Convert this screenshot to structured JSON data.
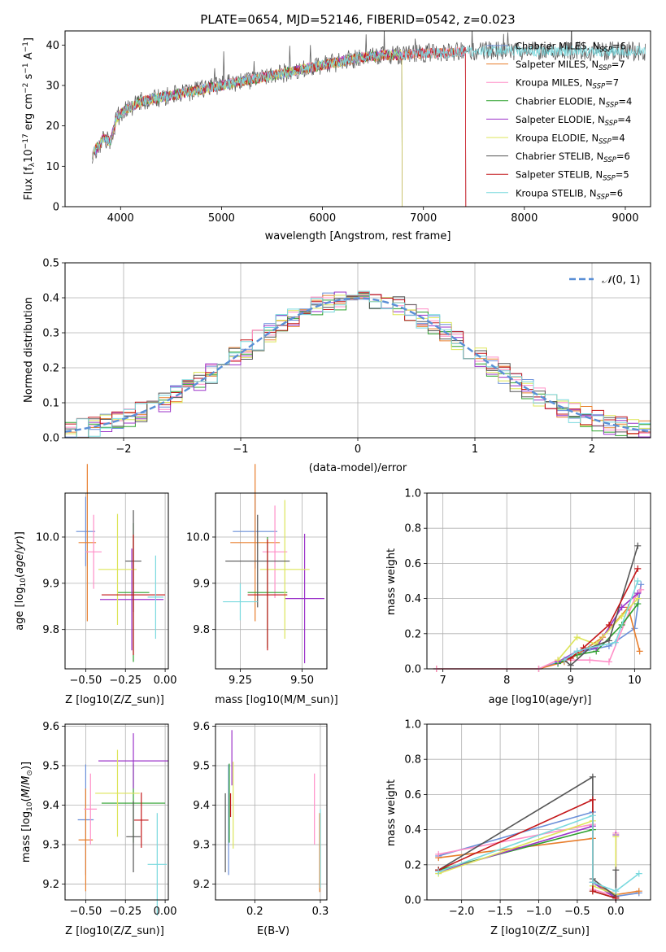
{
  "series_colors": [
    "#6a8fd9",
    "#e87e2c",
    "#ff8fc7",
    "#2ca02c",
    "#9b33c9",
    "#dde55a",
    "#555555",
    "#c4171a",
    "#7ad9de"
  ],
  "chart_data": [
    {
      "id": "spectrum",
      "type": "line",
      "title": "PLATE=0654, MJD=52146, FIBERID=0542, z=0.023",
      "xlabel": "wavelength [Angstrom, rest frame]",
      "ylabel": "Flux [f_λ 10^−17 erg cm^−2 s^−1 A^−1]",
      "xlim": [
        3450,
        9250
      ],
      "ylim": [
        0,
        43.5
      ],
      "xticks": [
        4000,
        5000,
        6000,
        7000,
        8000,
        9000
      ],
      "yticks": [
        0,
        10,
        20,
        30,
        40
      ],
      "grid": false,
      "legend": "top-right",
      "continuum": {
        "x": [
          3720,
          3780,
          3830,
          3900,
          3960,
          4050,
          4200,
          4400,
          4600,
          4800,
          5000,
          5200,
          5400,
          5600,
          5800,
          6000,
          6200,
          6400,
          6600,
          6800,
          7000,
          7200,
          7400,
          7600,
          7800,
          8000,
          8200,
          8400,
          8600,
          8800,
          9000,
          9200
        ],
        "y": [
          13,
          15,
          17,
          16,
          22,
          24,
          26,
          27,
          28,
          29,
          30,
          31,
          32,
          33,
          34,
          35,
          36,
          37,
          37.5,
          37.5,
          38,
          38,
          38.5,
          38.5,
          38.5,
          38.5,
          38.5,
          38.5,
          38.5,
          38.5,
          38.5,
          38.5
        ]
      },
      "series": [
        {
          "name": "Chabrier MILES, N_SSP=6",
          "end": 7420
        },
        {
          "name": "Salpeter MILES, N_SSP=7",
          "end": 7420
        },
        {
          "name": "Kroupa MILES, N_SSP=7",
          "end": 7420
        },
        {
          "name": "Chabrier ELODIE, N_SSP=4",
          "end": 6790
        },
        {
          "name": "Salpeter ELODIE, N_SSP=4",
          "end": 6790
        },
        {
          "name": "Kroupa ELODIE, N_SSP=4",
          "end": 6790
        },
        {
          "name": "Chabrier STELIB, N_SSP=6",
          "end": 9200
        },
        {
          "name": "Salpeter STELIB, N_SSP=5",
          "end": 7420
        },
        {
          "name": "Kroupa STELIB, N_SSP=6",
          "end": 9200
        }
      ],
      "legend_labels": [
        {
          "prefix": "Chabrier MILES, N",
          "sub": "SSP",
          "suffix": "=6"
        },
        {
          "prefix": "Salpeter MILES, N",
          "sub": "SSP",
          "suffix": "=7"
        },
        {
          "prefix": "Kroupa MILES, N",
          "sub": "SSP",
          "suffix": "=7"
        },
        {
          "prefix": "Chabrier ELODIE, N",
          "sub": "SSP",
          "suffix": "=4"
        },
        {
          "prefix": "Salpeter ELODIE, N",
          "sub": "SSP",
          "suffix": "=4"
        },
        {
          "prefix": "Kroupa ELODIE, N",
          "sub": "SSP",
          "suffix": "=4"
        },
        {
          "prefix": "Chabrier STELIB, N",
          "sub": "SSP",
          "suffix": "=6"
        },
        {
          "prefix": "Salpeter STELIB, N",
          "sub": "SSP",
          "suffix": "=5"
        },
        {
          "prefix": "Kroupa STELIB, N",
          "sub": "SSP",
          "suffix": "=6"
        }
      ]
    },
    {
      "id": "residuals",
      "type": "histogram",
      "xlabel": "(data-model)/error",
      "ylabel": "Normed distribution",
      "xlim": [
        -2.5,
        2.5
      ],
      "ylim": [
        0,
        0.5
      ],
      "xticks": [
        -2,
        -1,
        0,
        1,
        2
      ],
      "yticks": [
        0.0,
        0.1,
        0.2,
        0.3,
        0.4,
        0.5
      ],
      "grid": true,
      "legend": "top-right",
      "reference": {
        "name": "N(0,1)",
        "mu": 0,
        "sigma": 1
      },
      "bin_width": 0.1
    },
    {
      "id": "age_vs_Z",
      "type": "scatter-errorbar",
      "xlabel": "Z [log10(Z/Z_sun)]",
      "ylabel": "age [log10(age/yr)]",
      "xlim": [
        -0.63,
        0.02
      ],
      "ylim": [
        9.715,
        10.095
      ],
      "xticks": [
        -0.5,
        -0.25,
        0.0
      ],
      "yticks": [
        9.8,
        9.9,
        10.0
      ],
      "grid": true,
      "points": [
        {
          "x": -0.5,
          "y": 10.012,
          "xerr": 0.06,
          "yerr": 0.075
        },
        {
          "x": -0.49,
          "y": 9.988,
          "xerr": 0.055,
          "yerr": 0.17
        },
        {
          "x": -0.45,
          "y": 9.968,
          "xerr": 0.05,
          "yerr": 0.08
        },
        {
          "x": -0.2,
          "y": 9.88,
          "xerr": 0.1,
          "yerr": 0.15
        },
        {
          "x": -0.21,
          "y": 9.865,
          "xerr": 0.2,
          "yerr": 0.11
        },
        {
          "x": -0.3,
          "y": 9.93,
          "xerr": 0.12,
          "yerr": 0.12
        },
        {
          "x": -0.2,
          "y": 9.948,
          "xerr": 0.05,
          "yerr": 0.11
        },
        {
          "x": -0.2,
          "y": 9.875,
          "xerr": 0.2,
          "yerr": 0.13
        },
        {
          "x": -0.06,
          "y": 9.87,
          "xerr": 0.05,
          "yerr": 0.09
        }
      ]
    },
    {
      "id": "age_vs_mass",
      "type": "scatter-errorbar",
      "xlabel": "mass [log10(M/M_sun)]",
      "ylabel": "",
      "xlim": [
        9.15,
        9.6
      ],
      "ylim": [
        9.715,
        10.095
      ],
      "xticks": [
        9.25,
        9.5
      ],
      "xtick_labels": [
        "9.25",
        "9.50"
      ],
      "yticks": [
        9.8,
        9.9,
        10.0
      ],
      "grid": true,
      "points": [
        {
          "x": 9.31,
          "y": 10.012,
          "xerr": 0.09,
          "yerr": 0.08
        },
        {
          "x": 9.31,
          "y": 9.988,
          "xerr": 0.1,
          "yerr": 0.17
        },
        {
          "x": 9.39,
          "y": 9.968,
          "xerr": 0.05,
          "yerr": 0.1
        },
        {
          "x": 9.36,
          "y": 9.88,
          "xerr": 0.08,
          "yerr": 0.12
        },
        {
          "x": 9.51,
          "y": 9.867,
          "xerr": 0.08,
          "yerr": 0.14
        },
        {
          "x": 9.43,
          "y": 9.93,
          "xerr": 0.1,
          "yerr": 0.15
        },
        {
          "x": 9.32,
          "y": 9.948,
          "xerr": 0.13,
          "yerr": 0.1
        },
        {
          "x": 9.36,
          "y": 9.875,
          "xerr": 0.08,
          "yerr": 0.12
        },
        {
          "x": 9.25,
          "y": 9.86,
          "xerr": 0.07,
          "yerr": 0.04
        }
      ]
    },
    {
      "id": "weight_vs_age",
      "type": "line",
      "xlabel": "age [log10(age/yr)]",
      "ylabel": "mass weight",
      "xlim": [
        6.75,
        10.25
      ],
      "ylim": [
        0,
        1.0
      ],
      "xticks": [
        7,
        8,
        9,
        10
      ],
      "yticks": [
        0.0,
        0.2,
        0.4,
        0.6,
        0.8,
        1.0
      ],
      "grid": true,
      "series": [
        {
          "x": [
            6.9,
            8.5,
            8.9,
            9.2,
            9.6,
            10.0,
            10.1
          ],
          "y": [
            0.0,
            0.0,
            0.05,
            0.1,
            0.13,
            0.23,
            0.48
          ]
        },
        {
          "x": [
            6.9,
            8.5,
            8.9,
            9.1,
            9.5,
            9.9,
            10.08
          ],
          "y": [
            0.0,
            0.0,
            0.04,
            0.08,
            0.18,
            0.35,
            0.1
          ]
        },
        {
          "x": [
            6.9,
            8.5,
            8.8,
            9.3,
            9.6,
            10.0,
            10.1
          ],
          "y": [
            0.0,
            0.0,
            0.05,
            0.05,
            0.04,
            0.4,
            0.45
          ]
        },
        {
          "x": [
            8.8,
            9.1,
            9.4,
            9.8,
            10.05
          ],
          "y": [
            0.03,
            0.08,
            0.1,
            0.25,
            0.37
          ]
        },
        {
          "x": [
            8.8,
            9.1,
            9.4,
            9.8,
            10.05
          ],
          "y": [
            0.04,
            0.1,
            0.12,
            0.35,
            0.43
          ]
        },
        {
          "x": [
            8.8,
            9.1,
            9.4,
            9.8,
            10.05
          ],
          "y": [
            0.05,
            0.18,
            0.14,
            0.3,
            0.4
          ]
        },
        {
          "x": [
            8.9,
            9.0,
            9.3,
            9.6,
            10.05
          ],
          "y": [
            0.05,
            0.02,
            0.12,
            0.16,
            0.7
          ]
        },
        {
          "x": [
            8.9,
            9.0,
            9.2,
            9.6,
            10.05
          ],
          "y": [
            0.05,
            0.06,
            0.12,
            0.25,
            0.57
          ]
        },
        {
          "x": [
            8.9,
            9.1,
            9.3,
            9.7,
            10.05
          ],
          "y": [
            0.05,
            0.1,
            0.12,
            0.15,
            0.5
          ]
        }
      ]
    },
    {
      "id": "mass_vs_Z",
      "type": "scatter-errorbar",
      "xlabel": "Z [log10(Z/Z_sun)]",
      "ylabel": "mass [log10(M/M_sun)]",
      "xlim": [
        -0.63,
        0.02
      ],
      "ylim": [
        9.16,
        9.605
      ],
      "xticks": [
        -0.5,
        -0.25,
        0.0
      ],
      "yticks": [
        9.2,
        9.3,
        9.4,
        9.5,
        9.6
      ],
      "grid": true,
      "points": [
        {
          "x": -0.5,
          "y": 9.363,
          "xerr": 0.05,
          "yerr": 0.14
        },
        {
          "x": -0.5,
          "y": 9.312,
          "xerr": 0.045,
          "yerr": 0.13
        },
        {
          "x": -0.47,
          "y": 9.39,
          "xerr": 0.04,
          "yerr": 0.09
        },
        {
          "x": -0.2,
          "y": 9.405,
          "xerr": 0.2,
          "yerr": 0.1
        },
        {
          "x": -0.2,
          "y": 9.512,
          "xerr": 0.22,
          "yerr": 0.07
        },
        {
          "x": -0.3,
          "y": 9.43,
          "xerr": 0.14,
          "yerr": 0.11
        },
        {
          "x": -0.2,
          "y": 9.32,
          "xerr": 0.045,
          "yerr": 0.09
        },
        {
          "x": -0.15,
          "y": 9.362,
          "xerr": 0.045,
          "yerr": 0.07
        },
        {
          "x": -0.05,
          "y": 9.25,
          "xerr": 0.06,
          "yerr": 0.13
        }
      ]
    },
    {
      "id": "mass_vs_EBV",
      "type": "scatter-errorbar",
      "xlabel": "E(B-V)",
      "ylabel": "",
      "xlim": [
        0.14,
        0.31
      ],
      "ylim": [
        9.16,
        9.605
      ],
      "xticks": [
        0.2,
        0.3
      ],
      "yticks": [
        9.2,
        9.3,
        9.4,
        9.5,
        9.6
      ],
      "grid": true,
      "points": [
        {
          "x": 0.16,
          "y": 9.363,
          "xerr": 0.0,
          "yerr": 0.14
        },
        {
          "x": 0.299,
          "y": 9.28,
          "xerr": 0.0,
          "yerr": 0.1
        },
        {
          "x": 0.291,
          "y": 9.39,
          "xerr": 0.0,
          "yerr": 0.09
        },
        {
          "x": 0.161,
          "y": 9.405,
          "xerr": 0.0,
          "yerr": 0.1
        },
        {
          "x": 0.165,
          "y": 9.52,
          "xerr": 0.0,
          "yerr": 0.07
        },
        {
          "x": 0.167,
          "y": 9.4,
          "xerr": 0.0,
          "yerr": 0.11
        },
        {
          "x": 0.155,
          "y": 9.33,
          "xerr": 0.0,
          "yerr": 0.1
        },
        {
          "x": 0.163,
          "y": 9.4,
          "xerr": 0.0,
          "yerr": 0.03
        },
        {
          "x": 0.3,
          "y": 9.29,
          "xerr": 0.0,
          "yerr": 0.1
        }
      ]
    },
    {
      "id": "weight_vs_Z",
      "type": "line",
      "xlabel": "Z [log10(Z/Z_sun)]",
      "ylabel": "mass weight",
      "xlim": [
        -2.45,
        0.45
      ],
      "ylim": [
        0,
        1.0
      ],
      "xticks": [
        -2.0,
        -1.5,
        -1.0,
        -0.5,
        0.0
      ],
      "yticks": [
        0.0,
        0.2,
        0.4,
        0.6,
        0.8,
        1.0
      ],
      "grid": true,
      "series": [
        {
          "x": [
            -2.3,
            -0.3,
            -0.3,
            0.0,
            0.3
          ],
          "y": [
            0.25,
            0.5,
            0.1,
            0.02,
            0.04
          ]
        },
        {
          "x": [
            -2.3,
            -0.3,
            -0.3,
            0.0,
            0.3
          ],
          "y": [
            0.24,
            0.35,
            0.1,
            0.03,
            0.05
          ]
        },
        {
          "x": [
            -2.3,
            -0.3,
            -0.3,
            0.0,
            0.0
          ],
          "y": [
            0.26,
            0.43,
            0.06,
            0.02,
            0.38
          ]
        },
        {
          "x": [
            -2.3,
            -0.3,
            -0.3,
            0.0
          ],
          "y": [
            0.17,
            0.4,
            0.05,
            0.01
          ]
        },
        {
          "x": [
            -2.3,
            -0.3,
            -0.3,
            0.0,
            0.0
          ],
          "y": [
            0.16,
            0.42,
            0.1,
            0.01,
            0.37
          ]
        },
        {
          "x": [
            -2.3,
            -0.3,
            -0.3,
            0.0,
            0.0
          ],
          "y": [
            0.15,
            0.45,
            0.08,
            0.03,
            0.36
          ]
        },
        {
          "x": [
            -2.3,
            -0.3,
            -0.3,
            0.0,
            0.0
          ],
          "y": [
            0.17,
            0.7,
            0.12,
            0.02,
            0.17
          ]
        },
        {
          "x": [
            -2.3,
            -0.3,
            -0.3,
            0.0
          ],
          "y": [
            0.17,
            0.57,
            0.05,
            0.01
          ]
        },
        {
          "x": [
            -2.3,
            -0.3,
            -0.3,
            0.0,
            0.3
          ],
          "y": [
            0.16,
            0.48,
            0.1,
            0.05,
            0.15
          ]
        }
      ]
    }
  ]
}
